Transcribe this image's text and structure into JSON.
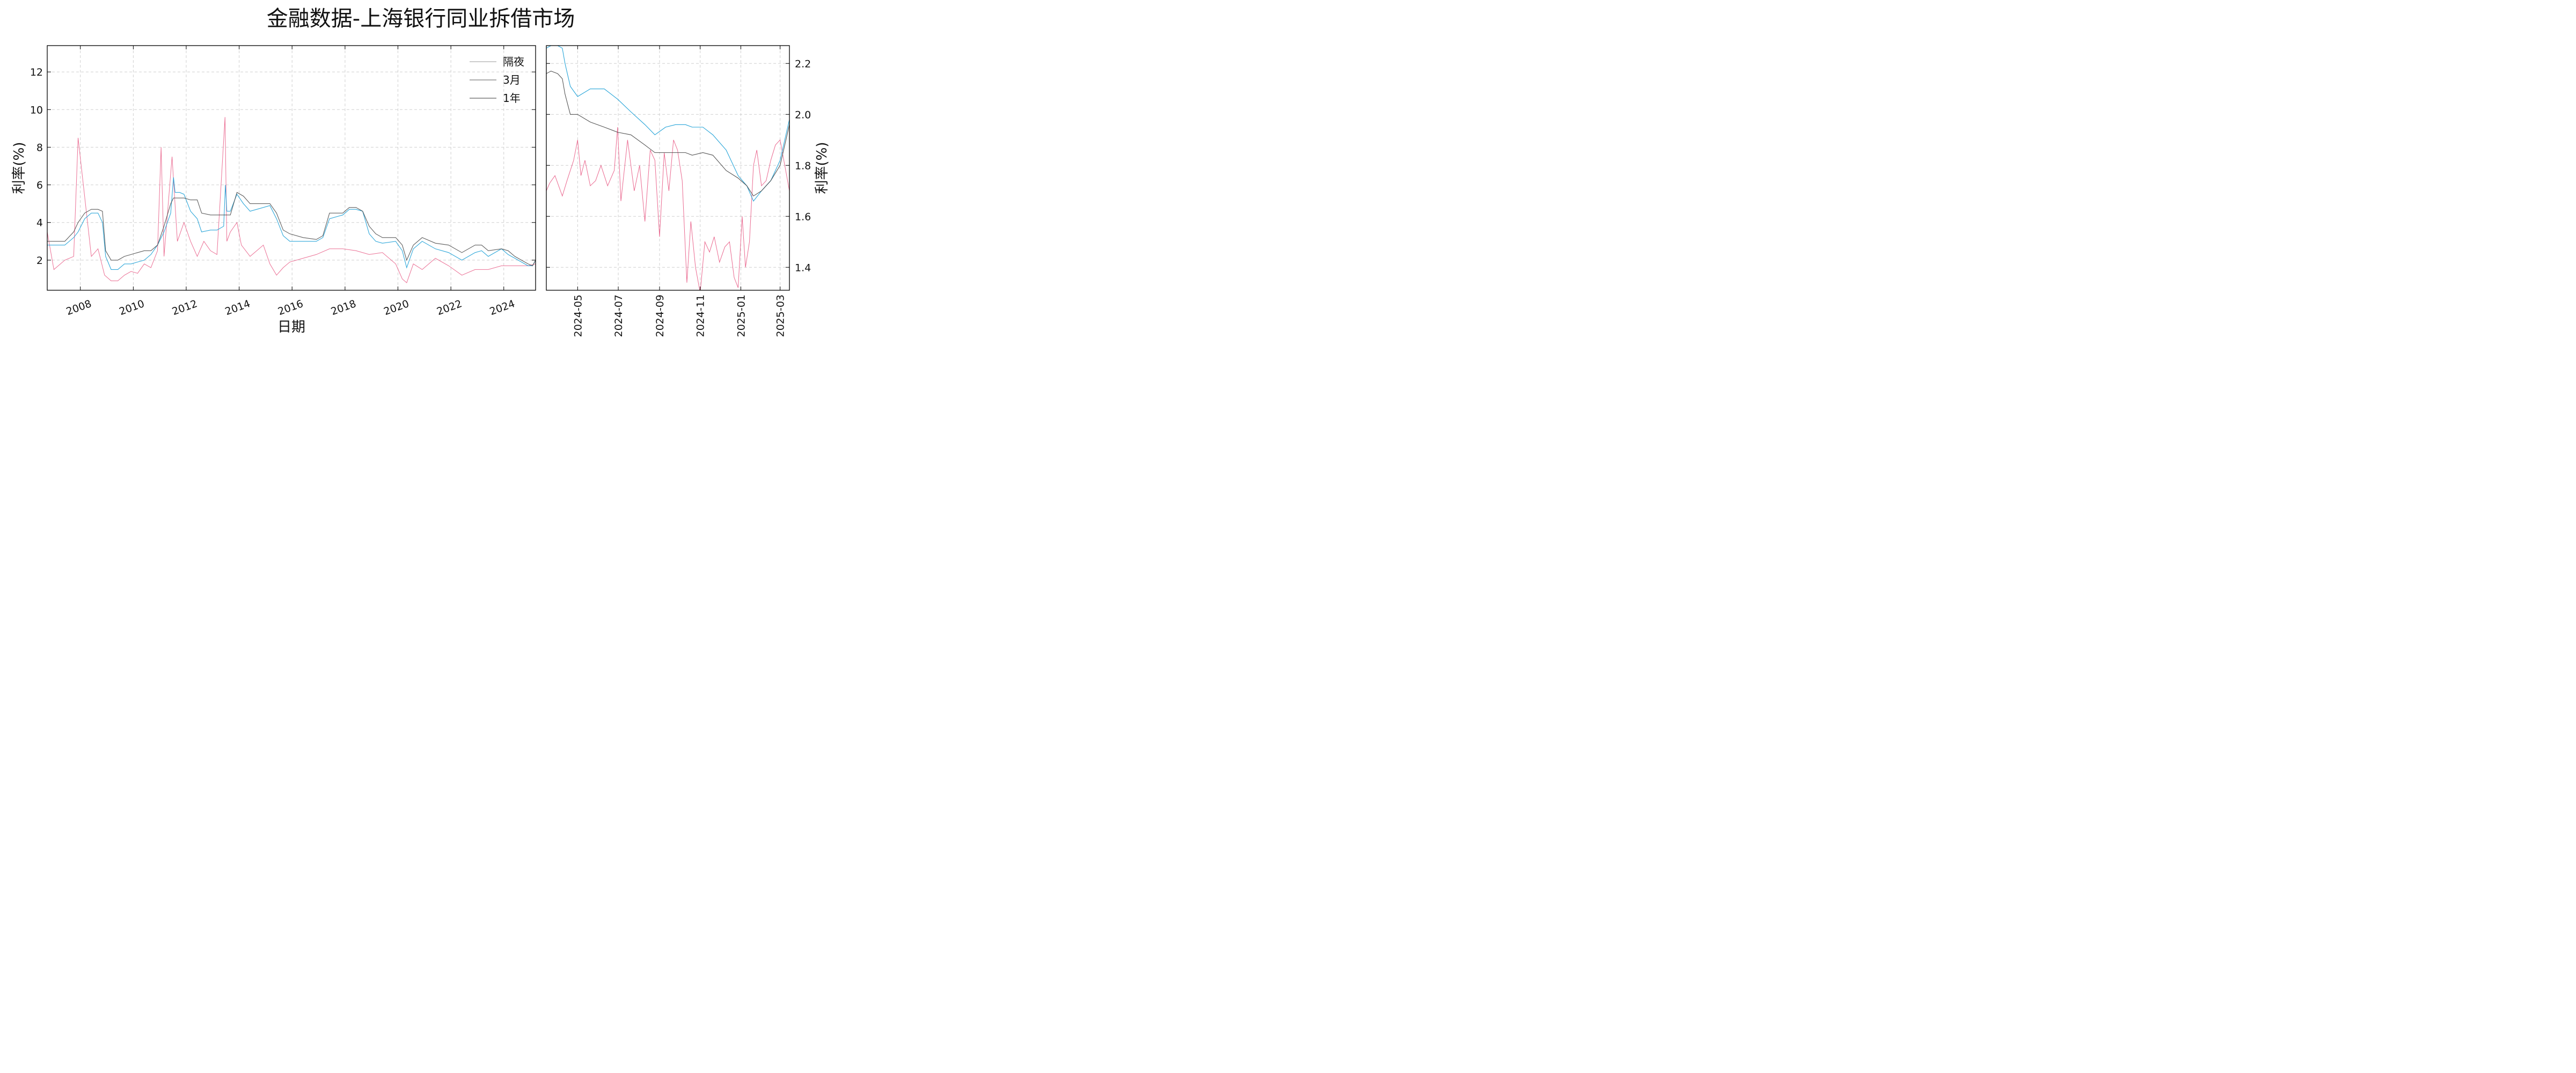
{
  "chart_data": [
    {
      "type": "line",
      "title": "金融数据-上海银行同业拆借市场",
      "xlabel": "日期",
      "ylabel": "利率(%)",
      "x_tick_labels": [
        "2008",
        "2010",
        "2012",
        "2014",
        "2016",
        "2018",
        "2020",
        "2022",
        "2024"
      ],
      "y_tick_labels": [
        "2",
        "4",
        "6",
        "8",
        "10",
        "12"
      ],
      "xlim": [
        "2006-10-01",
        "2025-03-15"
      ],
      "ylim": [
        0.4,
        13.4
      ],
      "grid": true,
      "legend_position": "top-right",
      "legend": [
        "隔夜",
        "3月",
        "1年"
      ],
      "series": [
        {
          "name": "隔夜",
          "color": "#e9618a",
          "x": [
            "2006-10-01",
            "2007-01-01",
            "2007-06-01",
            "2007-10-01",
            "2007-12-01",
            "2008-06-01",
            "2008-09-01",
            "2008-12-01",
            "2009-03-01",
            "2009-06-01",
            "2009-09-01",
            "2009-12-01",
            "2010-03-01",
            "2010-06-01",
            "2010-09-01",
            "2010-12-01",
            "2011-01-20",
            "2011-03-01",
            "2011-06-20",
            "2011-09-01",
            "2011-12-01",
            "2012-03-01",
            "2012-06-01",
            "2012-09-01",
            "2012-12-01",
            "2013-03-01",
            "2013-06-20",
            "2013-07-15",
            "2013-09-01",
            "2013-12-01",
            "2014-02-01",
            "2014-06-01",
            "2014-09-01",
            "2014-12-01",
            "2015-03-01",
            "2015-06-01",
            "2015-09-01",
            "2015-12-01",
            "2016-06-01",
            "2016-12-01",
            "2017-06-01",
            "2017-12-01",
            "2018-06-01",
            "2018-12-01",
            "2019-06-01",
            "2019-12-01",
            "2020-03-01",
            "2020-05-01",
            "2020-08-01",
            "2020-12-01",
            "2021-06-01",
            "2021-12-01",
            "2022-06-01",
            "2022-12-01",
            "2023-06-01",
            "2023-12-01",
            "2024-06-01",
            "2024-12-01",
            "2025-03-15"
          ],
          "values": [
            3.5,
            1.5,
            2.0,
            2.2,
            8.5,
            2.2,
            2.6,
            1.2,
            0.9,
            0.9,
            1.2,
            1.4,
            1.3,
            1.8,
            1.6,
            2.5,
            8.0,
            2.2,
            7.5,
            3.0,
            4.0,
            3.0,
            2.2,
            3.0,
            2.5,
            2.3,
            9.6,
            3.0,
            3.5,
            4.0,
            2.8,
            2.2,
            2.5,
            2.8,
            1.8,
            1.2,
            1.6,
            1.9,
            2.1,
            2.3,
            2.6,
            2.6,
            2.5,
            2.3,
            2.4,
            1.8,
            1.0,
            0.8,
            1.8,
            1.5,
            2.1,
            1.7,
            1.2,
            1.5,
            1.5,
            1.7,
            1.7,
            1.7,
            1.8
          ]
        },
        {
          "name": "3月",
          "color": "#1a9fd6",
          "x": [
            "2006-10-01",
            "2007-03-01",
            "2007-06-01",
            "2007-10-01",
            "2007-12-01",
            "2008-03-01",
            "2008-06-01",
            "2008-09-01",
            "2008-11-01",
            "2008-12-15",
            "2009-03-01",
            "2009-06-01",
            "2009-09-01",
            "2009-12-01",
            "2010-03-01",
            "2010-06-01",
            "2010-09-01",
            "2010-12-01",
            "2011-03-01",
            "2011-06-01",
            "2011-07-10",
            "2011-08-01",
            "2011-10-01",
            "2011-12-01",
            "2012-03-01",
            "2012-06-01",
            "2012-08-01",
            "2012-12-01",
            "2013-03-01",
            "2013-06-01",
            "2013-06-25",
            "2013-07-15",
            "2013-09-01",
            "2013-12-01",
            "2014-03-01",
            "2014-06-01",
            "2014-09-01",
            "2014-12-01",
            "2015-03-01",
            "2015-06-01",
            "2015-09-01",
            "2015-12-01",
            "2016-06-01",
            "2016-12-01",
            "2017-03-01",
            "2017-06-01",
            "2017-12-01",
            "2018-03-01",
            "2018-06-01",
            "2018-09-01",
            "2018-12-01",
            "2019-03-01",
            "2019-06-01",
            "2019-12-01",
            "2020-03-01",
            "2020-05-01",
            "2020-08-01",
            "2020-12-01",
            "2021-06-01",
            "2021-12-01",
            "2022-06-01",
            "2022-12-01",
            "2023-03-01",
            "2023-06-01",
            "2023-12-01",
            "2024-03-01",
            "2024-06-01",
            "2024-12-01",
            "2025-02-01",
            "2025-03-15"
          ],
          "values": [
            2.8,
            2.8,
            2.8,
            3.2,
            3.5,
            4.2,
            4.5,
            4.5,
            4.0,
            2.2,
            1.5,
            1.5,
            1.8,
            1.8,
            1.9,
            2.0,
            2.3,
            2.8,
            3.5,
            4.5,
            6.4,
            5.6,
            5.6,
            5.5,
            4.6,
            4.2,
            3.5,
            3.6,
            3.6,
            3.8,
            6.0,
            4.6,
            4.6,
            5.5,
            5.0,
            4.6,
            4.7,
            4.8,
            4.9,
            4.2,
            3.3,
            3.0,
            3.0,
            3.0,
            3.2,
            4.2,
            4.4,
            4.7,
            4.7,
            4.6,
            3.4,
            3.0,
            2.9,
            3.0,
            2.5,
            1.6,
            2.6,
            3.0,
            2.6,
            2.4,
            2.0,
            2.4,
            2.5,
            2.2,
            2.6,
            2.3,
            2.1,
            1.7,
            1.7,
            2.0
          ]
        },
        {
          "name": "1年",
          "color": "#4d4d4d",
          "x": [
            "2006-10-01",
            "2007-03-01",
            "2007-06-01",
            "2007-10-01",
            "2007-12-01",
            "2008-03-01",
            "2008-06-01",
            "2008-09-01",
            "2008-11-01",
            "2008-12-15",
            "2009-03-01",
            "2009-06-01",
            "2009-09-01",
            "2009-12-01",
            "2010-03-01",
            "2010-06-01",
            "2010-09-01",
            "2010-12-01",
            "2011-03-01",
            "2011-06-01",
            "2011-07-10",
            "2011-08-01",
            "2011-10-01",
            "2011-12-01",
            "2012-03-01",
            "2012-06-01",
            "2012-08-01",
            "2012-12-01",
            "2013-03-01",
            "2013-06-01",
            "2013-06-25",
            "2013-07-15",
            "2013-09-01",
            "2013-12-01",
            "2014-03-01",
            "2014-06-01",
            "2014-09-01",
            "2014-12-01",
            "2015-03-01",
            "2015-06-01",
            "2015-09-01",
            "2015-12-01",
            "2016-06-01",
            "2016-12-01",
            "2017-03-01",
            "2017-06-01",
            "2017-12-01",
            "2018-03-01",
            "2018-06-01",
            "2018-09-01",
            "2018-12-01",
            "2019-03-01",
            "2019-06-01",
            "2019-12-01",
            "2020-03-01",
            "2020-05-01",
            "2020-08-01",
            "2020-12-01",
            "2021-06-01",
            "2021-12-01",
            "2022-06-01",
            "2022-12-01",
            "2023-03-01",
            "2023-06-01",
            "2023-12-01",
            "2024-03-01",
            "2024-06-01",
            "2024-12-01",
            "2025-02-01",
            "2025-03-15"
          ],
          "values": [
            3.0,
            3.0,
            3.0,
            3.5,
            4.0,
            4.5,
            4.7,
            4.7,
            4.6,
            2.5,
            2.0,
            2.0,
            2.2,
            2.3,
            2.4,
            2.5,
            2.5,
            2.8,
            3.8,
            5.0,
            5.3,
            5.3,
            5.3,
            5.3,
            5.2,
            5.2,
            4.5,
            4.4,
            4.4,
            4.4,
            4.4,
            4.4,
            4.4,
            5.6,
            5.4,
            5.0,
            5.0,
            5.0,
            5.0,
            4.5,
            3.6,
            3.4,
            3.2,
            3.1,
            3.3,
            4.5,
            4.5,
            4.8,
            4.8,
            4.6,
            3.8,
            3.4,
            3.2,
            3.2,
            2.8,
            2.0,
            2.8,
            3.2,
            2.9,
            2.8,
            2.4,
            2.8,
            2.8,
            2.5,
            2.6,
            2.5,
            2.2,
            1.8,
            1.7,
            2.0
          ]
        }
      ]
    },
    {
      "type": "line",
      "title": "",
      "xlabel": "",
      "ylabel": "利率(%)",
      "x_tick_labels": [
        "2024-05",
        "2024-07",
        "2024-09",
        "2024-11",
        "2025-01",
        "2025-03"
      ],
      "y_tick_labels": [
        "1.4",
        "1.6",
        "1.8",
        "2.0",
        "2.2"
      ],
      "xlim": [
        "2024-03-15",
        "2025-03-15"
      ],
      "ylim": [
        1.31,
        2.27
      ],
      "grid": true,
      "series": [
        {
          "name": "隔夜",
          "color": "#e9618a",
          "x": [
            "2024-03-15",
            "2024-03-20",
            "2024-03-28",
            "2024-04-08",
            "2024-04-15",
            "2024-04-25",
            "2024-05-01",
            "2024-05-06",
            "2024-05-12",
            "2024-05-20",
            "2024-05-28",
            "2024-06-05",
            "2024-06-15",
            "2024-06-25",
            "2024-06-30",
            "2024-07-05",
            "2024-07-15",
            "2024-07-25",
            "2024-08-02",
            "2024-08-10",
            "2024-08-18",
            "2024-08-25",
            "2024-09-01",
            "2024-09-08",
            "2024-09-15",
            "2024-09-22",
            "2024-09-28",
            "2024-10-05",
            "2024-10-12",
            "2024-10-18",
            "2024-10-25",
            "2024-11-01",
            "2024-11-08",
            "2024-11-15",
            "2024-11-22",
            "2024-11-30",
            "2024-12-08",
            "2024-12-15",
            "2024-12-22",
            "2024-12-28",
            "2025-01-03",
            "2025-01-08",
            "2025-01-14",
            "2025-01-20",
            "2025-01-25",
            "2025-02-01",
            "2025-02-08",
            "2025-02-15",
            "2025-02-22",
            "2025-03-01",
            "2025-03-08",
            "2025-03-15"
          ],
          "values": [
            1.7,
            1.73,
            1.76,
            1.68,
            1.74,
            1.82,
            1.9,
            1.76,
            1.82,
            1.72,
            1.74,
            1.8,
            1.72,
            1.78,
            1.95,
            1.66,
            1.9,
            1.7,
            1.8,
            1.58,
            1.86,
            1.82,
            1.52,
            1.85,
            1.7,
            1.9,
            1.86,
            1.74,
            1.34,
            1.58,
            1.4,
            1.3,
            1.5,
            1.46,
            1.52,
            1.42,
            1.48,
            1.5,
            1.36,
            1.32,
            1.6,
            1.4,
            1.5,
            1.8,
            1.86,
            1.72,
            1.74,
            1.82,
            1.88,
            1.9,
            1.8,
            1.7
          ]
        },
        {
          "name": "3月",
          "color": "#1a9fd6",
          "x": [
            "2024-03-15",
            "2024-03-22",
            "2024-04-01",
            "2024-04-08",
            "2024-04-12",
            "2024-04-20",
            "2024-05-01",
            "2024-05-20",
            "2024-06-10",
            "2024-06-30",
            "2024-07-20",
            "2024-08-10",
            "2024-08-25",
            "2024-09-10",
            "2024-09-25",
            "2024-10-10",
            "2024-10-20",
            "2024-11-05",
            "2024-11-20",
            "2024-12-10",
            "2024-12-28",
            "2025-01-10",
            "2025-01-20",
            "2025-02-01",
            "2025-02-15",
            "2025-03-01",
            "2025-03-15"
          ],
          "values": [
            2.26,
            2.27,
            2.27,
            2.26,
            2.2,
            2.11,
            2.07,
            2.1,
            2.1,
            2.06,
            2.01,
            1.96,
            1.92,
            1.95,
            1.96,
            1.96,
            1.95,
            1.95,
            1.92,
            1.86,
            1.76,
            1.72,
            1.66,
            1.7,
            1.74,
            1.82,
            1.98
          ]
        },
        {
          "name": "1年",
          "color": "#4d4d4d",
          "x": [
            "2024-03-15",
            "2024-03-22",
            "2024-04-01",
            "2024-04-08",
            "2024-04-12",
            "2024-04-20",
            "2024-05-01",
            "2024-05-20",
            "2024-06-10",
            "2024-06-30",
            "2024-07-20",
            "2024-08-10",
            "2024-08-25",
            "2024-09-10",
            "2024-09-25",
            "2024-10-10",
            "2024-10-20",
            "2024-11-05",
            "2024-11-20",
            "2024-12-10",
            "2024-12-28",
            "2025-01-10",
            "2025-01-20",
            "2025-02-01",
            "2025-02-15",
            "2025-03-01",
            "2025-03-15"
          ],
          "values": [
            2.16,
            2.17,
            2.16,
            2.14,
            2.08,
            2.0,
            2.0,
            1.97,
            1.95,
            1.93,
            1.92,
            1.88,
            1.85,
            1.85,
            1.85,
            1.85,
            1.84,
            1.85,
            1.84,
            1.78,
            1.75,
            1.72,
            1.68,
            1.7,
            1.74,
            1.8,
            1.96
          ]
        }
      ]
    }
  ]
}
